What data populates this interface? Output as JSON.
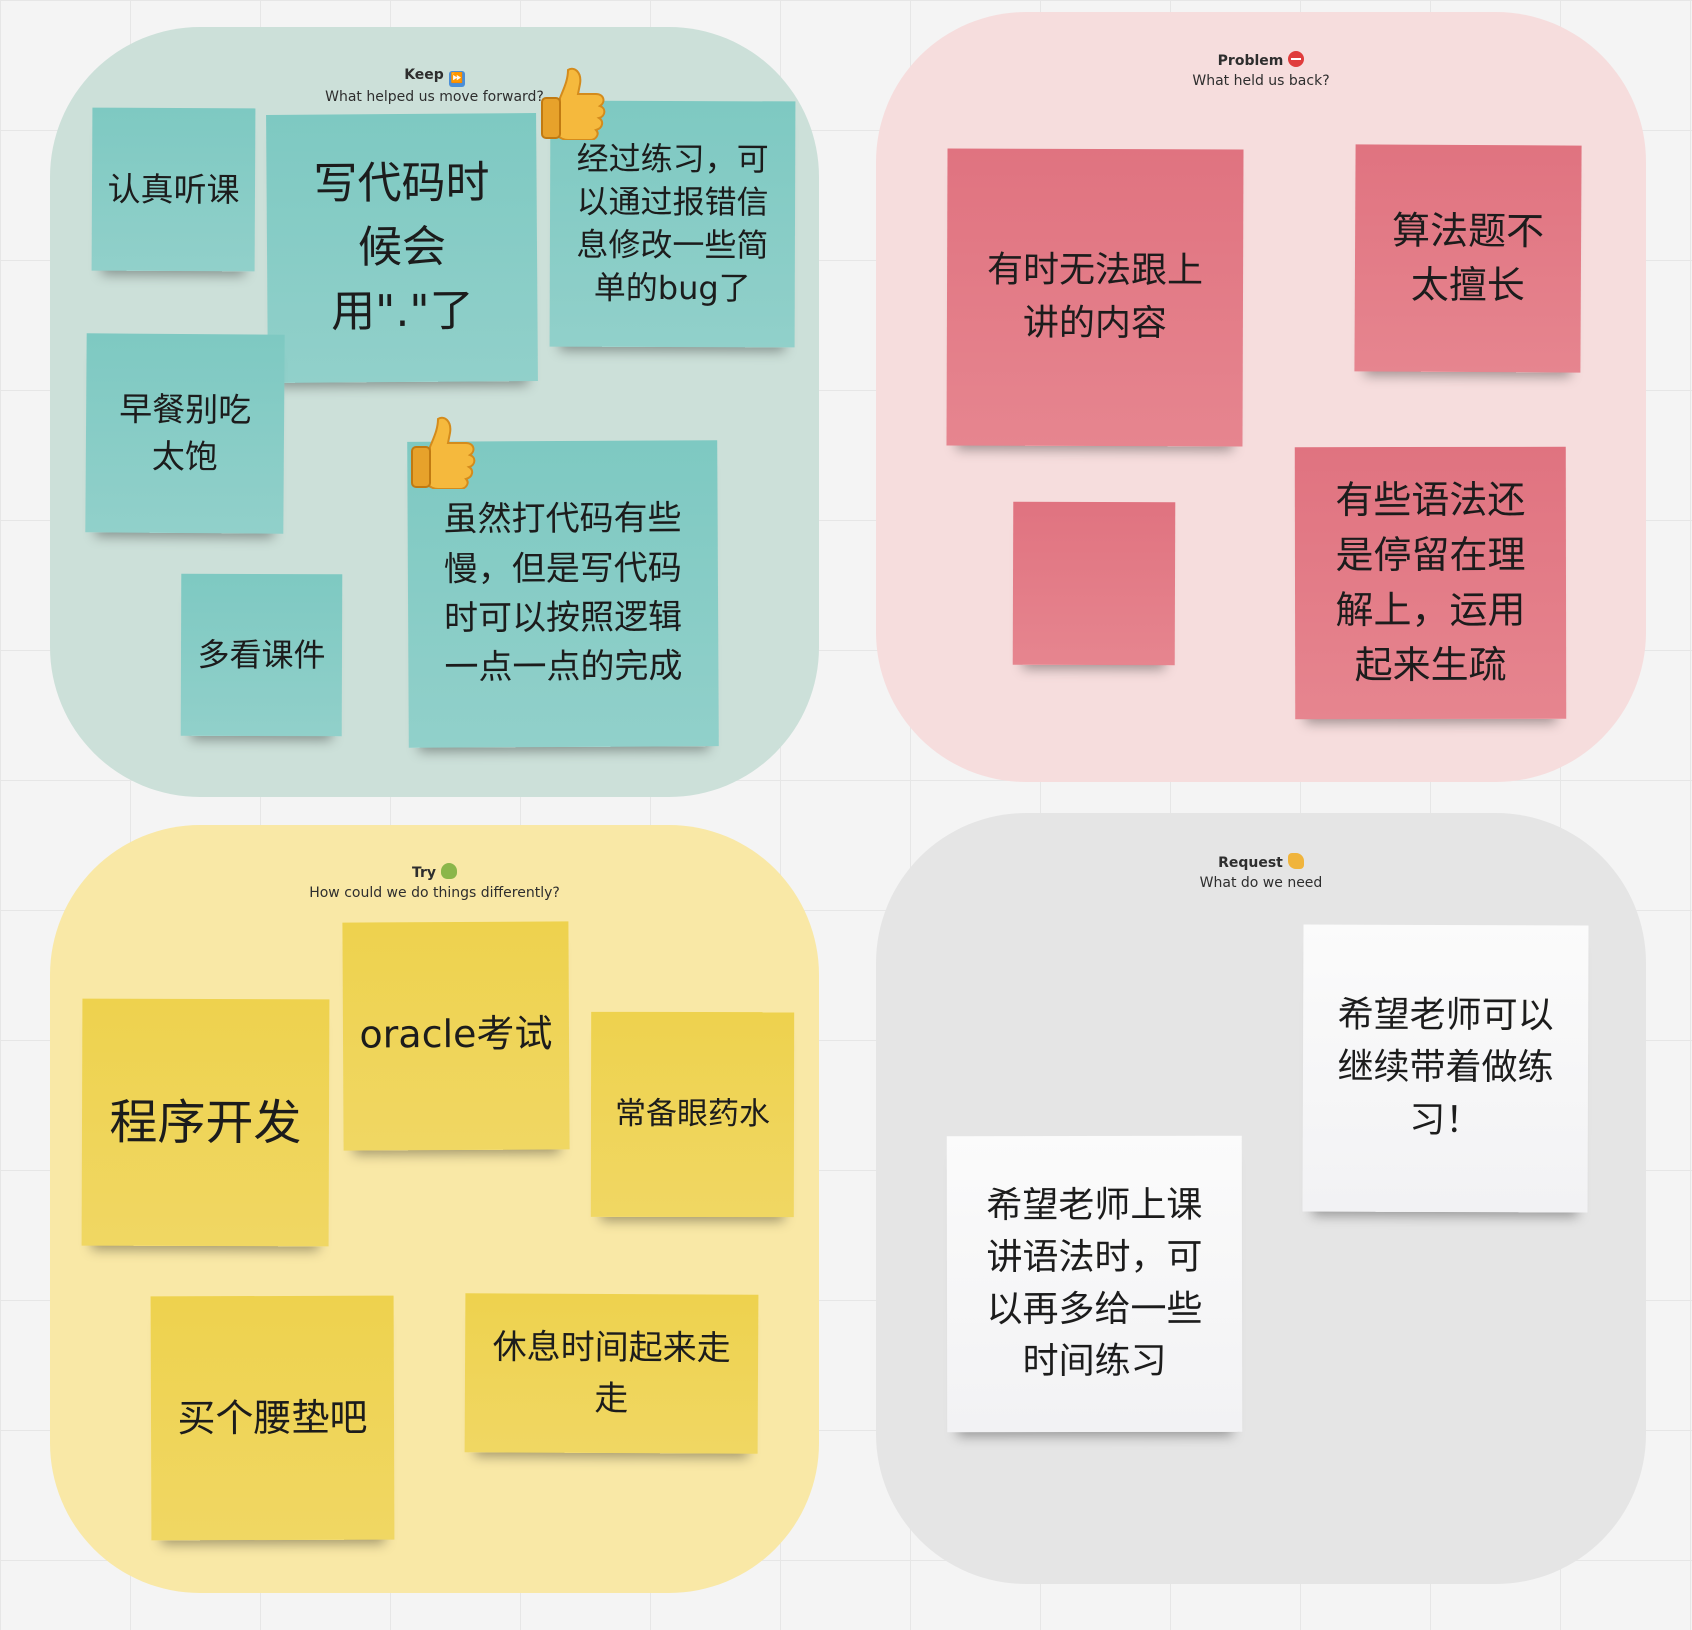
{
  "quadrants": {
    "keep": {
      "title": "Keep",
      "emoji": "fast-forward-button-icon",
      "subtitle": "What helped us move forward?"
    },
    "problem": {
      "title": "Problem",
      "emoji": "no-entry-icon",
      "subtitle": "What held us back?"
    },
    "try": {
      "title": "Try",
      "emoji": "tamale-icon",
      "subtitle": "How could we do things differently?"
    },
    "request": {
      "title": "Request",
      "emoji": "flexed-biceps-icon",
      "subtitle": "What do we need"
    }
  },
  "colors": {
    "keep_bg": "#cce0d9",
    "problem_bg": "#f6dddd",
    "try_bg": "#f9e8a6",
    "request_bg": "#e5e5e5",
    "teal_note": "#86ccc5",
    "pink_note": "#e27b87",
    "yellow_note": "#efd457",
    "white_note": "#f7f7f8"
  },
  "notes": {
    "keep": [
      "认真听课",
      "写代码时候会用\".\"了",
      "经过练习，可以通过报错信息修改一些简单的bug了",
      "早餐别吃太饱",
      "虽然打代码有些慢，但是写代码时可以按照逻辑一点一点的完成",
      "多看课件"
    ],
    "problem": [
      "有时无法跟上讲的内容",
      "算法题不太擅长",
      "",
      "有些语法还是停留在理解上，运用起来生疏"
    ],
    "try": [
      "程序开发",
      "oracle考试",
      "常备眼药水",
      "买个腰垫吧",
      "休息时间起来走走"
    ],
    "request": [
      "希望老师可以继续带着做练习！",
      "希望老师上课讲语法时，可以再多给一些时间练习"
    ]
  },
  "reactions": [
    "thumbs-up-icon",
    "thumbs-up-icon"
  ]
}
